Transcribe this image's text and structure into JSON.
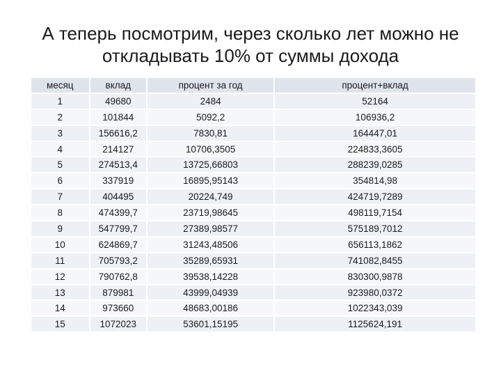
{
  "title": {
    "line1": "А теперь посмотрим, через сколько лет можно не",
    "line2": "откладывать 10% от суммы дохода"
  },
  "table": {
    "headers": [
      "месяц",
      "вклад",
      "процент за год",
      "процент+вклад"
    ],
    "rows": [
      [
        "1",
        "49680",
        "2484",
        "52164"
      ],
      [
        "2",
        "101844",
        "5092,2",
        "106936,2"
      ],
      [
        "3",
        "156616,2",
        "7830,81",
        "164447,01"
      ],
      [
        "4",
        "214127",
        "10706,3505",
        "224833,3605"
      ],
      [
        "5",
        "274513,4",
        "13725,66803",
        "288239,0285"
      ],
      [
        "6",
        "337919",
        "16895,95143",
        "354814,98"
      ],
      [
        "7",
        "404495",
        "20224,749",
        "424719,7289"
      ],
      [
        "8",
        "474399,7",
        "23719,98645",
        "498119,7154"
      ],
      [
        "9",
        "547799,7",
        "27389,98577",
        "575189,7012"
      ],
      [
        "10",
        "624869,7",
        "31243,48506",
        "656113,1862"
      ],
      [
        "11",
        "705793,2",
        "35289,65931",
        "741082,8455"
      ],
      [
        "12",
        "790762,8",
        "39538,14228",
        "830300,9878"
      ],
      [
        "13",
        "879981",
        "43999,04939",
        "923980,0372"
      ],
      [
        "14",
        "973660",
        "48683,00186",
        "1022343,039"
      ],
      [
        "15",
        "1072023",
        "53601,15195",
        "1125624,191"
      ]
    ]
  },
  "colors": {
    "header_bg": "#dfe3ec",
    "row_odd_bg": "#edf0f5",
    "row_even_bg": "#f6f7fa"
  }
}
